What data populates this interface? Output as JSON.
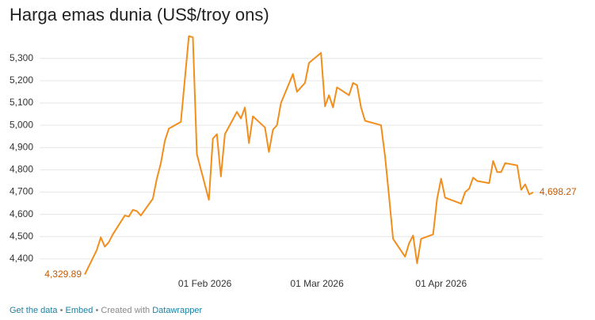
{
  "chart_data": {
    "type": "line",
    "title": "Harga emas dunia (US$/troy ons)",
    "x": [
      "2026-01-02",
      "2026-01-05",
      "2026-01-06",
      "2026-01-07",
      "2026-01-08",
      "2026-01-09",
      "2026-01-12",
      "2026-01-13",
      "2026-01-14",
      "2026-01-15",
      "2026-01-16",
      "2026-01-19",
      "2026-01-20",
      "2026-01-21",
      "2026-01-22",
      "2026-01-23",
      "2026-01-26",
      "2026-01-28",
      "2026-01-29",
      "2026-01-30",
      "2026-02-02",
      "2026-02-03",
      "2026-02-04",
      "2026-02-05",
      "2026-02-06",
      "2026-02-09",
      "2026-02-10",
      "2026-02-11",
      "2026-02-12",
      "2026-02-13",
      "2026-02-16",
      "2026-02-17",
      "2026-02-18",
      "2026-02-19",
      "2026-02-20",
      "2026-02-23",
      "2026-02-24",
      "2026-02-25",
      "2026-02-26",
      "2026-02-27",
      "2026-03-02",
      "2026-03-03",
      "2026-03-04",
      "2026-03-05",
      "2026-03-06",
      "2026-03-09",
      "2026-03-10",
      "2026-03-11",
      "2026-03-12",
      "2026-03-13",
      "2026-03-16",
      "2026-03-17",
      "2026-03-18",
      "2026-03-19",
      "2026-03-20",
      "2026-03-23",
      "2026-03-24",
      "2026-03-25",
      "2026-03-26",
      "2026-03-27",
      "2026-03-30",
      "2026-03-31",
      "2026-04-01",
      "2026-04-02",
      "2026-04-06",
      "2026-04-07",
      "2026-04-08",
      "2026-04-09",
      "2026-04-10",
      "2026-04-13",
      "2026-04-14",
      "2026-04-15",
      "2026-04-16",
      "2026-04-17",
      "2026-04-20",
      "2026-04-21",
      "2026-04-22",
      "2026-04-23",
      "2026-04-24"
    ],
    "values": [
      4329.89,
      4440,
      4497,
      4455,
      4475,
      4510,
      4595,
      4590,
      4620,
      4615,
      4595,
      4670,
      4760,
      4830,
      4930,
      4985,
      5015,
      5400,
      5395,
      4870,
      4665,
      4940,
      4960,
      4770,
      4960,
      5060,
      5030,
      5080,
      4920,
      5040,
      4990,
      4880,
      4980,
      5000,
      5100,
      5230,
      5150,
      5170,
      5190,
      5280,
      5325,
      5085,
      5135,
      5080,
      5170,
      5135,
      5190,
      5180,
      5080,
      5020,
      5005,
      5000,
      4860,
      4680,
      4490,
      4410,
      4470,
      4505,
      4380,
      4490,
      4510,
      4670,
      4760,
      4675,
      4648,
      4700,
      4715,
      4765,
      4750,
      4740,
      4840,
      4790,
      4790,
      4830,
      4820,
      4710,
      4735,
      4690,
      4698.27
    ],
    "value_labels": [
      "4,329.89",
      null,
      null,
      null,
      null,
      null,
      null,
      null,
      null,
      null,
      null,
      null,
      null,
      null,
      null,
      null,
      null,
      null,
      null,
      null,
      null,
      null,
      null,
      null,
      null,
      null,
      null,
      null,
      null,
      null,
      null,
      null,
      null,
      null,
      null,
      null,
      null,
      null,
      null,
      null,
      null,
      null,
      null,
      null,
      null,
      null,
      null,
      null,
      null,
      null,
      null,
      null,
      null,
      null,
      null,
      null,
      null,
      null,
      null,
      null,
      null,
      null,
      null,
      null,
      null,
      null,
      null,
      null,
      null,
      null,
      null,
      null,
      null,
      null,
      null,
      null,
      null,
      null,
      "4,698.27"
    ],
    "color": "#f28e1c",
    "xlim": [
      "2026-01-02",
      "2026-04-24"
    ],
    "xticks": [
      {
        "value": "2026-02-01",
        "label": "01 Feb 2026"
      },
      {
        "value": "2026-03-01",
        "label": "01 Mar 2026"
      },
      {
        "value": "2026-04-01",
        "label": "01 Apr 2026"
      }
    ],
    "ylim": [
      4300,
      5420
    ],
    "yticks": [
      {
        "value": 4400,
        "label": "4,400"
      },
      {
        "value": 4500,
        "label": "4,500"
      },
      {
        "value": 4600,
        "label": "4,600"
      },
      {
        "value": 4700,
        "label": "4,700"
      },
      {
        "value": 4800,
        "label": "4,800"
      },
      {
        "value": 4900,
        "label": "4,900"
      },
      {
        "value": 5000,
        "label": "5,000"
      },
      {
        "value": 5100,
        "label": "5,100"
      },
      {
        "value": 5200,
        "label": "5,200"
      },
      {
        "value": 5300,
        "label": "5,300"
      }
    ],
    "grid": true
  },
  "footer": {
    "get_data": "Get the data",
    "separator": "•",
    "embed": "Embed",
    "created_with": "Created with",
    "datawrapper": "Datawrapper"
  }
}
